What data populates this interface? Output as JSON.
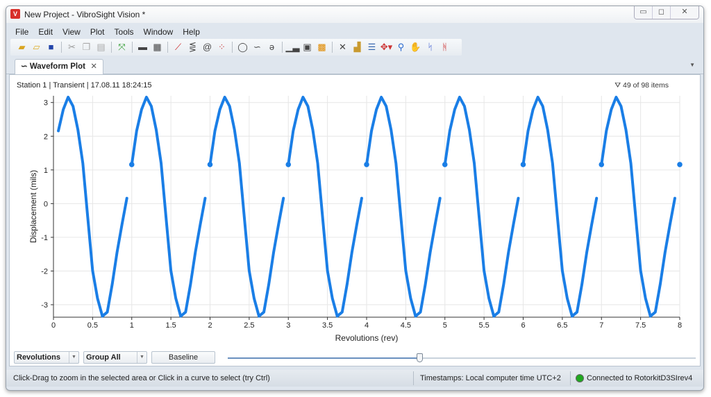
{
  "window": {
    "title": "New Project - VibroSight Vision *",
    "app_icon": "vibrosight-logo",
    "controls": [
      "minimize",
      "maximize",
      "close"
    ]
  },
  "menu": [
    "File",
    "Edit",
    "View",
    "Plot",
    "Tools",
    "Window",
    "Help"
  ],
  "toolbar": [
    "new-folder-icon",
    "open-folder-icon",
    "save-icon",
    "cut-icon",
    "copy-icon",
    "paste-icon",
    "fit-arrows-icon",
    "align-icon",
    "table-icon",
    "trend-icon",
    "waterfall-icon",
    "orbit-icon",
    "scatter-icon",
    "polar-icon",
    "waveform-icon",
    "shaft-centerline-icon",
    "spectrum-icon",
    "spectrum-box-icon",
    "colormap-icon",
    "delete-icon",
    "properties-icon",
    "list-icon",
    "cursor-dropdown-icon",
    "zoom-icon",
    "pan-icon",
    "cursor-line-icon",
    "dual-cursor-icon"
  ],
  "tab": {
    "label": "Waveform Plot",
    "close": "✕"
  },
  "plot_info": "Station 1 | Transient | 17.08.11 18:24:15",
  "filter": "49 of 98 items",
  "controls": {
    "axis_mode": "Revolutions",
    "group": "Group All",
    "baseline": "Baseline",
    "slider_position": 0.41
  },
  "status": {
    "hint": "Click-Drag to zoom in the selected area or Click in a curve to select (try Ctrl)",
    "timestamps": "Timestamps: Local computer time UTC+2",
    "connection": "Connected to RotorkitD3SIrev4",
    "connection_color": "#1fa81f"
  },
  "chart_data": {
    "type": "line",
    "xlabel": "Revolutions (rev)",
    "ylabel": "Displacement (mils)",
    "xlim": [
      0,
      8
    ],
    "ylim": [
      -3.37,
      3.2
    ],
    "xticks": [
      "0",
      "0.5",
      "1",
      "1.5",
      "2",
      "2.5",
      "3",
      "3.5",
      "4",
      "4.5",
      "5",
      "5.5",
      "6",
      "6.5",
      "7",
      "7.5",
      "8"
    ],
    "yticks": [
      "-3",
      "-2",
      "-1",
      "0",
      "1",
      "2",
      "3"
    ],
    "grid": true,
    "color": "#1a7ee6",
    "segments": [
      {
        "x0": 0.0625,
        "step": 0.0625,
        "y": [
          2.16,
          2.79,
          3.16,
          2.89,
          2.19,
          1.2,
          -0.4,
          -1.99,
          -2.81,
          -3.34,
          -3.22,
          -2.4,
          -1.44,
          -0.62,
          0.16
        ]
      },
      {
        "x0": 1,
        "step": 0.0625,
        "y": [
          1.16,
          2.16,
          2.79,
          3.16,
          2.89,
          2.19,
          1.2,
          -0.4,
          -1.99,
          -2.81,
          -3.34,
          -3.22,
          -2.4,
          -1.44,
          -0.62,
          0.16
        ]
      },
      {
        "x0": 2,
        "step": 0.0625,
        "y": [
          1.16,
          2.16,
          2.79,
          3.16,
          2.89,
          2.19,
          1.2,
          -0.4,
          -1.99,
          -2.81,
          -3.34,
          -3.22,
          -2.4,
          -1.44,
          -0.62,
          0.16
        ]
      },
      {
        "x0": 3,
        "step": 0.0625,
        "y": [
          1.16,
          2.16,
          2.79,
          3.16,
          2.89,
          2.19,
          1.2,
          -0.4,
          -1.99,
          -2.81,
          -3.34,
          -3.22,
          -2.4,
          -1.44,
          -0.62,
          0.16
        ]
      },
      {
        "x0": 4,
        "step": 0.0625,
        "y": [
          1.16,
          2.16,
          2.79,
          3.16,
          2.89,
          2.19,
          1.2,
          -0.4,
          -1.99,
          -2.81,
          -3.34,
          -3.22,
          -2.4,
          -1.44,
          -0.62,
          0.16
        ]
      },
      {
        "x0": 5,
        "step": 0.0625,
        "y": [
          1.16,
          2.16,
          2.79,
          3.16,
          2.89,
          2.19,
          1.2,
          -0.4,
          -1.99,
          -2.81,
          -3.34,
          -3.22,
          -2.4,
          -1.44,
          -0.62,
          0.16
        ]
      },
      {
        "x0": 6,
        "step": 0.0625,
        "y": [
          1.16,
          2.16,
          2.79,
          3.16,
          2.89,
          2.19,
          1.2,
          -0.4,
          -1.99,
          -2.81,
          -3.34,
          -3.22,
          -2.4,
          -1.44,
          -0.62,
          0.16
        ]
      },
      {
        "x0": 7,
        "step": 0.0625,
        "y": [
          1.16,
          2.16,
          2.79,
          3.16,
          2.89,
          2.19,
          1.2,
          -0.4,
          -1.99,
          -2.81,
          -3.34,
          -3.22,
          -2.4,
          -1.44,
          -0.62,
          0.16
        ]
      },
      {
        "x0": 8,
        "step": 0.0625,
        "y": [
          1.16
        ]
      }
    ]
  }
}
